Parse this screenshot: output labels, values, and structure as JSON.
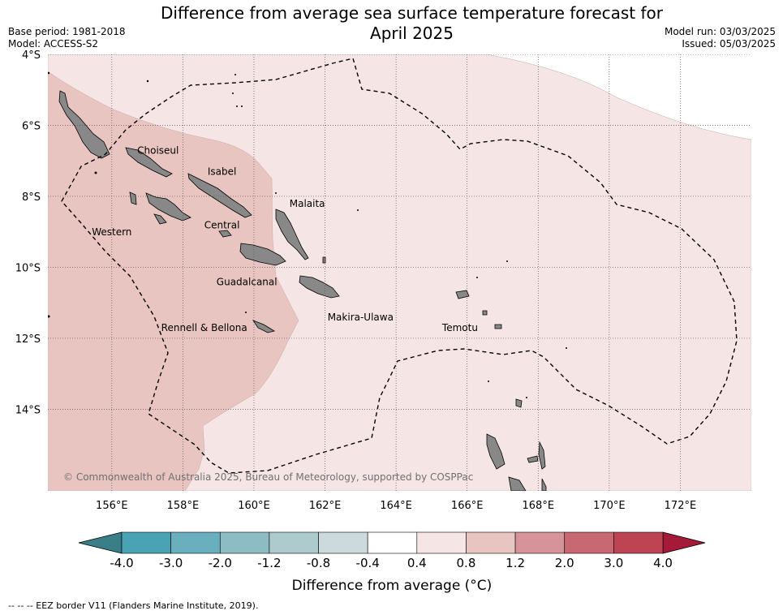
{
  "header": {
    "title_line1": "Difference from average sea surface temperature forecast for",
    "title_line2": "April 2025",
    "base_period": "Base period: 1981-2018",
    "model": "Model: ACCESS-S2",
    "model_run": "Model run: 03/03/2025",
    "issued": "Issued: 05/03/2025"
  },
  "map": {
    "lon_range": [
      154.2,
      174.0
    ],
    "lat_range": [
      -16.3,
      -4.0
    ],
    "lat_ticks": [
      {
        "value": -4,
        "label": "4°S"
      },
      {
        "value": -6,
        "label": "6°S"
      },
      {
        "value": -8,
        "label": "8°S"
      },
      {
        "value": -10,
        "label": "10°S"
      },
      {
        "value": -12,
        "label": "12°S"
      },
      {
        "value": -14,
        "label": "14°S"
      }
    ],
    "lon_ticks": [
      {
        "value": 156,
        "label": "156°E"
      },
      {
        "value": 158,
        "label": "158°E"
      },
      {
        "value": 160,
        "label": "160°E"
      },
      {
        "value": 162,
        "label": "162°E"
      },
      {
        "value": 164,
        "label": "164°E"
      },
      {
        "value": 166,
        "label": "166°E"
      },
      {
        "value": 168,
        "label": "168°E"
      },
      {
        "value": 170,
        "label": "170°E"
      },
      {
        "value": 172,
        "label": "172°E"
      }
    ],
    "province_labels": [
      {
        "name": "Choiseul",
        "lon": 157.3,
        "lat": -6.8
      },
      {
        "name": "Isabel",
        "lon": 159.1,
        "lat": -7.4
      },
      {
        "name": "Malaita",
        "lon": 161.5,
        "lat": -8.3
      },
      {
        "name": "Western",
        "lon": 156.0,
        "lat": -9.1
      },
      {
        "name": "Central",
        "lon": 159.1,
        "lat": -8.9
      },
      {
        "name": "Guadalcanal",
        "lon": 159.8,
        "lat": -10.5
      },
      {
        "name": "Rennell & Bellona",
        "lon": 158.6,
        "lat": -11.8
      },
      {
        "name": "Makira-Ulawa",
        "lon": 163.0,
        "lat": -11.5
      },
      {
        "name": "Temotu",
        "lon": 165.8,
        "lat": -11.8
      }
    ],
    "copyright": "© Commonwealth of Australia 2025, Bureau of Meteorology, supported by COSPPac",
    "colors": {
      "band_0p4_0p8": "#f5e6e5",
      "band_0p8_1p2": "#e8c5c0",
      "land": "#888888",
      "white_band": "#ffffff"
    }
  },
  "colorbar": {
    "label": "Difference from average (°C)",
    "tick_labels": [
      "-4.0",
      "-3.0",
      "-2.0",
      "-1.2",
      "-0.8",
      "-0.4",
      "0.4",
      "0.8",
      "1.2",
      "2.0",
      "3.0",
      "4.0"
    ],
    "low_extend_color": "#3a7f88",
    "high_extend_color": "#a51a38",
    "colors": [
      "#49a3b3",
      "#6aafbe",
      "#8ebcc5",
      "#adcacc",
      "#ccdadd",
      "#ffffff",
      "#f5e6e5",
      "#e8c5c0",
      "#d6939a",
      "#c86873",
      "#bd4553"
    ]
  },
  "footnote": "--  --  -- EEZ border V11 (Flanders Marine Institute, 2019)."
}
